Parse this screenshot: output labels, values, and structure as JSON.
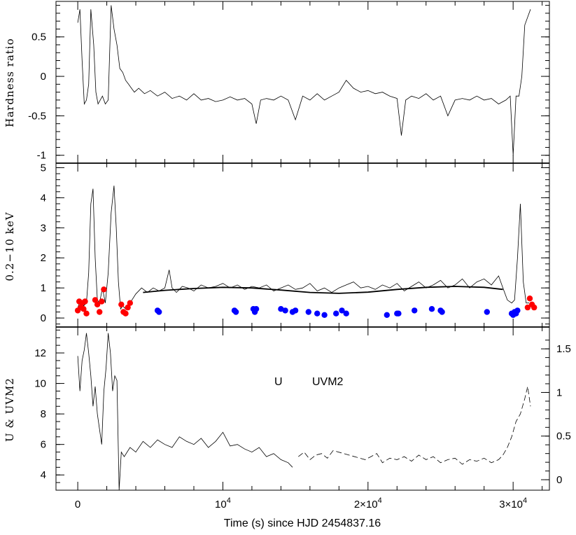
{
  "figure": {
    "xlabel": "Time (s) since HJD 2454837.16"
  },
  "chart_data": [
    {
      "type": "line",
      "ylabel": "Hardness ratio",
      "xlim": [
        -1500,
        32500
      ],
      "ylim": [
        -1.1,
        0.95
      ],
      "yticks": [
        "0.5",
        "0",
        "-0.5",
        "-1"
      ],
      "series": [
        {
          "x": [
            0,
            150,
            300,
            450,
            600,
            750,
            900,
            1100,
            1250,
            1400,
            1550,
            1700,
            1900,
            2100,
            2300,
            2500,
            2700,
            2900,
            3100,
            3300,
            3500,
            3700,
            3900,
            4200,
            4600,
            5000,
            5500,
            6000,
            6500,
            7000,
            7500,
            8000,
            8500,
            9000,
            9500,
            10000,
            10500,
            11000,
            11500,
            12000,
            12300,
            12600,
            13000,
            13500,
            14000,
            14500,
            15000,
            15500,
            16000,
            16500,
            17000,
            17500,
            18000,
            18500,
            19000,
            19500,
            20000,
            20500,
            21000,
            21500,
            22000,
            22300,
            22600,
            23000,
            23500,
            24000,
            24500,
            25000,
            25500,
            26000,
            26500,
            27000,
            27500,
            28000,
            28500,
            29000,
            29500,
            29800,
            30000,
            30200,
            30400,
            30600,
            30800,
            31000,
            31200
          ],
          "values": [
            0.68,
            0.85,
            0.2,
            -0.35,
            -0.3,
            -0.1,
            0.85,
            0.4,
            -0.2,
            -0.35,
            -0.3,
            -0.25,
            -0.35,
            -0.3,
            0.9,
            0.6,
            0.4,
            0.1,
            0.05,
            -0.05,
            -0.1,
            -0.15,
            -0.2,
            -0.15,
            -0.22,
            -0.18,
            -0.25,
            -0.2,
            -0.28,
            -0.25,
            -0.3,
            -0.22,
            -0.3,
            -0.28,
            -0.32,
            -0.3,
            -0.26,
            -0.3,
            -0.28,
            -0.35,
            -0.6,
            -0.3,
            -0.28,
            -0.3,
            -0.25,
            -0.3,
            -0.55,
            -0.25,
            -0.3,
            -0.22,
            -0.3,
            -0.25,
            -0.2,
            -0.05,
            -0.15,
            -0.2,
            -0.18,
            -0.22,
            -0.2,
            -0.25,
            -0.28,
            -0.75,
            -0.3,
            -0.25,
            -0.28,
            -0.22,
            -0.3,
            -0.25,
            -0.5,
            -0.3,
            -0.28,
            -0.3,
            -0.25,
            -0.3,
            -0.28,
            -0.35,
            -0.3,
            -0.25,
            -1.0,
            -0.25,
            -0.25,
            0.0,
            0.65,
            0.75,
            0.85
          ]
        }
      ]
    },
    {
      "type": "line",
      "ylabel": "0.2−10 keV",
      "xlim": [
        -1500,
        32500
      ],
      "ylim": [
        -0.3,
        5.15
      ],
      "yticks": [
        "5",
        "4",
        "3",
        "2",
        "1",
        "0"
      ],
      "series": [
        {
          "x": [
            0,
            200,
            400,
            600,
            750,
            900,
            1050,
            1200,
            1350,
            1500,
            1700,
            1900,
            2100,
            2300,
            2500,
            2650,
            2800,
            2950,
            3100,
            3300,
            3600,
            4000,
            4400,
            4800,
            5200,
            5600,
            6000,
            6300,
            6500,
            6800,
            7200,
            7600,
            8000,
            8500,
            9000,
            9500,
            10000,
            10500,
            11000,
            11500,
            12000,
            12500,
            13000,
            13500,
            14000,
            14500,
            15000,
            15500,
            16000,
            16500,
            17000,
            17500,
            18000,
            18500,
            19000,
            19500,
            20000,
            20500,
            21000,
            21500,
            22000,
            22500,
            23000,
            23500,
            24000,
            24500,
            25000,
            25500,
            26000,
            26500,
            27000,
            27500,
            28000,
            28500,
            29000,
            29300,
            29600,
            29900,
            30100,
            30300,
            30500,
            30700,
            30900,
            31100
          ],
          "values": [
            0.35,
            0.6,
            0.4,
            0.5,
            1.5,
            3.8,
            4.3,
            2.0,
            0.6,
            0.5,
            1.0,
            0.5,
            1.5,
            3.5,
            4.4,
            3.0,
            1.2,
            0.3,
            0.4,
            0.3,
            0.5,
            0.8,
            1.0,
            0.85,
            1.0,
            0.9,
            1.0,
            1.6,
            1.0,
            0.85,
            1.05,
            1.0,
            0.9,
            1.1,
            1.0,
            1.05,
            1.15,
            1.0,
            1.1,
            0.95,
            1.05,
            1.0,
            1.1,
            0.9,
            1.0,
            1.1,
            0.95,
            1.0,
            1.15,
            0.9,
            1.0,
            0.85,
            1.0,
            1.1,
            1.2,
            1.0,
            1.05,
            0.95,
            1.1,
            1.0,
            1.15,
            0.9,
            1.05,
            1.2,
            1.0,
            1.1,
            1.25,
            1.0,
            1.1,
            1.3,
            1.0,
            1.2,
            1.3,
            1.1,
            1.4,
            1.0,
            0.6,
            0.5,
            0.6,
            2.0,
            3.8,
            1.2,
            0.5,
            0.5
          ]
        },
        {
          "x": [
            4500,
            6000,
            8000,
            10000,
            12000,
            14000,
            16000,
            18000,
            20000,
            22000,
            24000,
            26000,
            28000,
            29300
          ],
          "values": [
            0.85,
            0.92,
            0.98,
            1.02,
            1.0,
            0.93,
            0.85,
            0.82,
            0.86,
            0.95,
            1.02,
            1.05,
            1.02,
            0.95
          ]
        },
        {
          "x": [
            0,
            100,
            200,
            300,
            400,
            500,
            600,
            1200,
            1350,
            1500,
            1650,
            1800,
            3000,
            3150,
            3300,
            3450,
            3600,
            31000,
            31150,
            31300,
            31450
          ],
          "values": [
            0.25,
            0.55,
            0.35,
            0.5,
            0.3,
            0.55,
            0.15,
            0.6,
            0.45,
            0.2,
            0.55,
            0.95,
            0.45,
            0.2,
            0.15,
            0.35,
            0.5,
            0.35,
            0.65,
            0.45,
            0.35
          ]
        },
        {
          "x": [
            5500,
            5600,
            10800,
            10900,
            12100,
            12200,
            12300,
            14000,
            14300,
            14800,
            15000,
            15900,
            16500,
            17000,
            17800,
            18200,
            18500,
            21300,
            22000,
            22100,
            23200,
            24400,
            25000,
            25100,
            28200,
            29900,
            30000,
            30100,
            30200,
            30300
          ],
          "values": [
            0.25,
            0.2,
            0.25,
            0.2,
            0.3,
            0.2,
            0.3,
            0.3,
            0.25,
            0.2,
            0.25,
            0.2,
            0.15,
            0.1,
            0.15,
            0.25,
            0.15,
            0.1,
            0.15,
            0.15,
            0.25,
            0.3,
            0.25,
            0.2,
            0.2,
            0.15,
            0.1,
            0.2,
            0.15,
            0.25
          ]
        }
      ]
    },
    {
      "type": "line",
      "ylabel": "U & UVM2",
      "xlim": [
        -1500,
        32500
      ],
      "ylim": [
        3,
        13.7
      ],
      "yticks": [
        "12",
        "10",
        "8",
        "6",
        "4"
      ],
      "y2ticks": [
        "1.5",
        "1",
        "0.5",
        "0"
      ],
      "legend": [
        "U",
        "UVM2"
      ],
      "series": [
        {
          "x": [
            0,
            150,
            300,
            450,
            600,
            750,
            900,
            1050,
            1200,
            1350,
            1500,
            1650,
            1800,
            1950,
            2100,
            2250,
            2400,
            2550,
            2700,
            2850,
            3000,
            3200,
            3600,
            4000,
            4500,
            5000,
            5500,
            6000,
            6500,
            7000,
            7500,
            8000,
            8500,
            9000,
            9500,
            10000,
            10500,
            11000,
            11500,
            12000,
            12500,
            13000,
            13500,
            14000,
            14500,
            14800
          ],
          "values": [
            11.8,
            9.5,
            11.5,
            12.2,
            13.3,
            12.0,
            10.5,
            8.5,
            9.8,
            8.0,
            7.0,
            6.0,
            9.5,
            11.0,
            13.3,
            12.0,
            9.5,
            10.5,
            10.2,
            3.0,
            5.5,
            5.2,
            5.8,
            5.5,
            6.2,
            5.8,
            6.3,
            6.0,
            5.8,
            6.5,
            6.2,
            6.0,
            6.4,
            5.8,
            6.2,
            6.8,
            5.9,
            6.0,
            5.7,
            5.5,
            5.8,
            5.2,
            5.4,
            5.0,
            4.8,
            4.5
          ]
        },
        {
          "x": [
            15200,
            15600,
            16000,
            16400,
            16800,
            17200,
            17600,
            19800,
            20200,
            20600,
            21000,
            21500,
            22000,
            22500,
            23000,
            23500,
            24000,
            24500,
            25000,
            25500,
            26000,
            26500,
            27000,
            27500,
            28000,
            28500,
            29000,
            29300,
            29600,
            29900,
            30200,
            30500,
            30800,
            31000,
            31200
          ],
          "values": [
            5.2,
            5.5,
            5.0,
            5.3,
            5.4,
            5.1,
            5.6,
            5.0,
            5.2,
            5.4,
            4.8,
            5.1,
            5.0,
            5.2,
            4.9,
            5.3,
            5.0,
            5.2,
            4.8,
            5.0,
            5.1,
            4.7,
            5.0,
            4.9,
            5.1,
            4.8,
            5.0,
            5.3,
            5.8,
            6.5,
            7.5,
            8.0,
            9.0,
            9.8,
            8.5
          ]
        }
      ]
    }
  ],
  "xaxis": {
    "ticks": [
      {
        "value": 0,
        "label": "0",
        "exp": ""
      },
      {
        "value": 10000,
        "label": "10",
        "exp": "4"
      },
      {
        "value": 20000,
        "label": "2×10",
        "exp": "4"
      },
      {
        "value": 30000,
        "label": "3×10",
        "exp": "4"
      }
    ]
  }
}
